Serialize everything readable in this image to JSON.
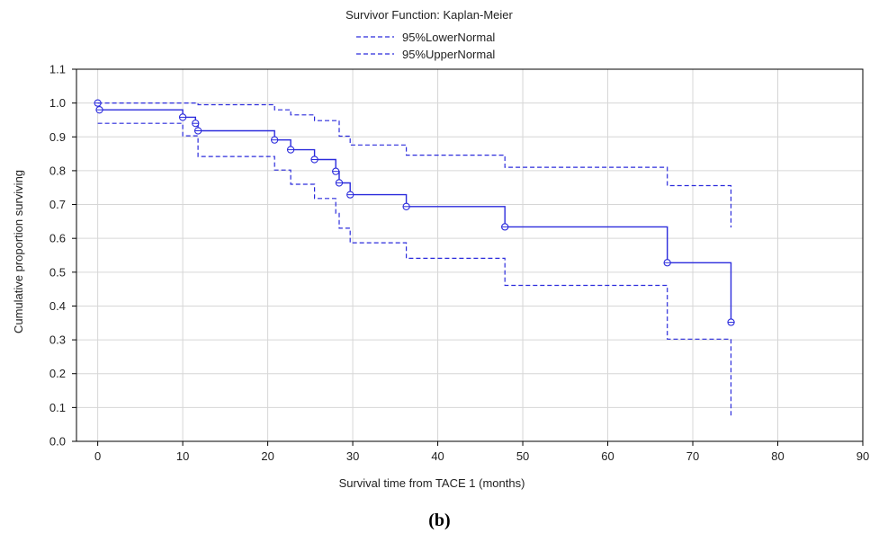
{
  "caption": "(b)",
  "chart_data": {
    "type": "line",
    "title": "Survivor Function: Kaplan-Meier",
    "xlabel": "Survival time from TACE 1 (months)",
    "ylabel": "Cumulative proportion surviving",
    "xlim": [
      -2.5,
      90
    ],
    "ylim": [
      0,
      1.1
    ],
    "xticks": [
      "0",
      "10",
      "20",
      "30",
      "40",
      "50",
      "60",
      "70",
      "80",
      "90"
    ],
    "yticks": [
      "0.0",
      "0.1",
      "0.2",
      "0.3",
      "0.4",
      "0.5",
      "0.6",
      "0.7",
      "0.8",
      "0.9",
      "1.0",
      "1.1"
    ],
    "grid": true,
    "legend_position": "top-center",
    "series": [
      {
        "name": "",
        "style": "solid",
        "color": "#2b2bdc",
        "points": [
          [
            0,
            1.0
          ],
          [
            0.2,
            0.98
          ],
          [
            10.0,
            0.958
          ],
          [
            11.5,
            0.94
          ],
          [
            11.8,
            0.918
          ],
          [
            20.8,
            0.891
          ],
          [
            22.7,
            0.862
          ],
          [
            25.5,
            0.833
          ],
          [
            28.0,
            0.798
          ],
          [
            28.4,
            0.764
          ],
          [
            29.7,
            0.729
          ],
          [
            36.3,
            0.694
          ],
          [
            47.9,
            0.634
          ],
          [
            67.0,
            0.528
          ],
          [
            74.5,
            0.352
          ]
        ],
        "censored_markers": [
          [
            0,
            1.0
          ],
          [
            0.2,
            0.98
          ],
          [
            10.0,
            0.958
          ],
          [
            11.5,
            0.94
          ],
          [
            11.8,
            0.918
          ],
          [
            20.8,
            0.891
          ],
          [
            22.7,
            0.862
          ],
          [
            25.5,
            0.833
          ],
          [
            28.0,
            0.798
          ],
          [
            28.4,
            0.764
          ],
          [
            29.7,
            0.729
          ],
          [
            36.3,
            0.694
          ],
          [
            47.9,
            0.634
          ],
          [
            67.0,
            0.528
          ],
          [
            74.5,
            0.352
          ]
        ],
        "end_x": 74.5
      },
      {
        "name": "95%LowerNormal",
        "style": "dashed",
        "color": "#2b2bdc",
        "points": [
          [
            0,
            0.94
          ],
          [
            10.0,
            0.903
          ],
          [
            11.8,
            0.842
          ],
          [
            20.8,
            0.802
          ],
          [
            22.7,
            0.76
          ],
          [
            25.5,
            0.718
          ],
          [
            28.0,
            0.674
          ],
          [
            28.4,
            0.63
          ],
          [
            29.7,
            0.587
          ],
          [
            36.3,
            0.541
          ],
          [
            47.9,
            0.461
          ],
          [
            67.0,
            0.302
          ],
          [
            74.5,
            0.075
          ]
        ],
        "end_x": 74.5
      },
      {
        "name": "95%UpperNormal",
        "style": "dashed",
        "color": "#2b2bdc",
        "points": [
          [
            0,
            1.0
          ],
          [
            11.8,
            0.995
          ],
          [
            20.8,
            0.98
          ],
          [
            22.7,
            0.965
          ],
          [
            25.5,
            0.948
          ],
          [
            28.4,
            0.902
          ],
          [
            29.7,
            0.876
          ],
          [
            36.3,
            0.846
          ],
          [
            47.9,
            0.81
          ],
          [
            67.0,
            0.756
          ],
          [
            74.5,
            0.632
          ]
        ],
        "end_x": 74.5
      }
    ]
  }
}
